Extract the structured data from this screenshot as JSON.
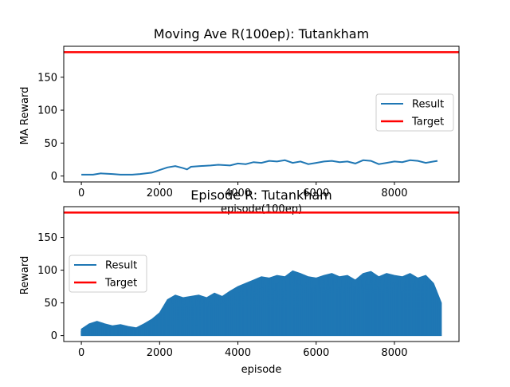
{
  "chart_data": [
    {
      "type": "line",
      "title": "Moving Ave R(100ep): Tutankham",
      "xlabel": "episode(100ep)",
      "ylabel": "MA Reward",
      "xlim": [
        -450,
        9650
      ],
      "ylim": [
        -9,
        197
      ],
      "xticks": [
        0,
        2000,
        4000,
        6000,
        8000
      ],
      "yticks": [
        0,
        50,
        100,
        150
      ],
      "legend_position": "center-right",
      "colors": {
        "result": "#1f77b4",
        "target": "#ff0000"
      },
      "series": [
        {
          "name": "Result",
          "style": "line",
          "x": [
            0,
            300,
            500,
            800,
            1000,
            1300,
            1500,
            1800,
            2000,
            2200,
            2400,
            2600,
            2700,
            2800,
            3000,
            3300,
            3500,
            3800,
            4000,
            4200,
            4400,
            4600,
            4800,
            5000,
            5200,
            5400,
            5600,
            5800,
            6000,
            6200,
            6400,
            6600,
            6800,
            7000,
            7200,
            7400,
            7600,
            7800,
            8000,
            8200,
            8400,
            8600,
            8800,
            9000,
            9100
          ],
          "y": [
            2,
            2,
            4,
            3,
            2,
            2,
            3,
            5,
            9,
            13,
            15,
            12,
            10,
            14,
            15,
            16,
            17,
            16,
            19,
            18,
            21,
            20,
            23,
            22,
            24,
            20,
            22,
            18,
            20,
            22,
            23,
            21,
            22,
            19,
            24,
            23,
            18,
            20,
            22,
            21,
            24,
            23,
            20,
            22,
            23
          ]
        },
        {
          "name": "Target",
          "style": "hline",
          "value": 188
        }
      ]
    },
    {
      "type": "line",
      "title": "Episode R: Tutankham",
      "xlabel": "episode",
      "ylabel": "Reward",
      "xlim": [
        -450,
        9650
      ],
      "ylim": [
        -9,
        197
      ],
      "xticks": [
        0,
        2000,
        4000,
        6000,
        8000
      ],
      "yticks": [
        0,
        50,
        100,
        150
      ],
      "legend_position": "center-left",
      "colors": {
        "result": "#1f77b4",
        "target": "#ff0000"
      },
      "series": [
        {
          "name": "Result",
          "style": "band",
          "x": [
            0,
            200,
            400,
            600,
            800,
            1000,
            1200,
            1400,
            1600,
            1800,
            2000,
            2200,
            2400,
            2600,
            2800,
            3000,
            3200,
            3400,
            3600,
            3800,
            4000,
            4200,
            4400,
            4600,
            4800,
            5000,
            5200,
            5400,
            5600,
            5800,
            6000,
            6200,
            6400,
            6600,
            6800,
            7000,
            7200,
            7400,
            7600,
            7800,
            8000,
            8200,
            8400,
            8600,
            8800,
            9000,
            9200
          ],
          "y": [
            10,
            18,
            22,
            18,
            15,
            17,
            14,
            12,
            18,
            25,
            35,
            55,
            62,
            58,
            60,
            62,
            58,
            65,
            60,
            68,
            75,
            80,
            85,
            90,
            88,
            92,
            90,
            99,
            95,
            90,
            88,
            92,
            95,
            90,
            92,
            85,
            95,
            98,
            90,
            95,
            92,
            90,
            95,
            88,
            92,
            80,
            50
          ],
          "floor": 0
        },
        {
          "name": "Target",
          "style": "hline",
          "value": 188
        }
      ]
    }
  ]
}
